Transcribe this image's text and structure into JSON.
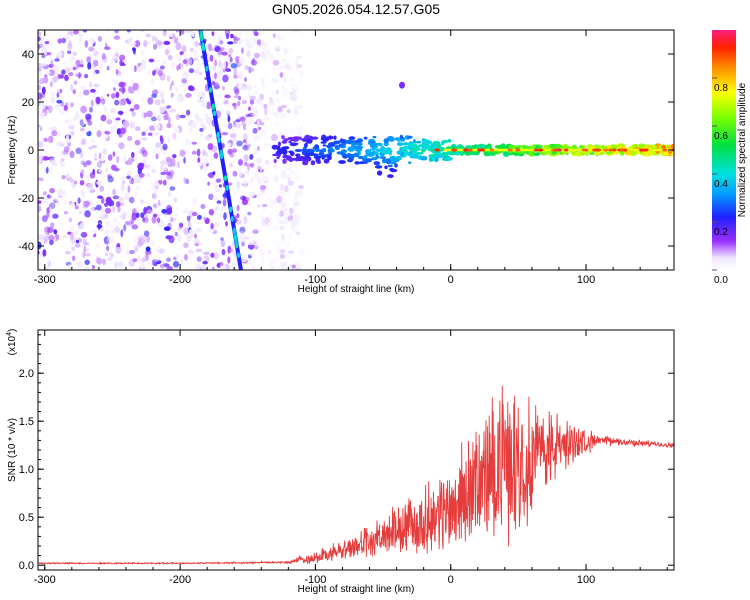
{
  "title": "GN05.2026.054.12.57.G05",
  "chart_data": [
    {
      "type": "heatmap",
      "name": "spectrogram",
      "xlabel": "Height of straight line (km)",
      "ylabel": "Frequency (Hz)",
      "xlim": [
        -305,
        165
      ],
      "ylim": [
        -50,
        50
      ],
      "xticks": [
        -300,
        -200,
        -100,
        0,
        100
      ],
      "yticks": [
        -40,
        -20,
        0,
        20,
        40
      ],
      "colorbar": {
        "label": "Normalized spectral amplitude",
        "range": [
          0,
          1
        ],
        "ticks": [
          0.0,
          0.2,
          0.4,
          0.6,
          0.8
        ],
        "tick_labels": [
          "0.0",
          "0.2",
          "0.4",
          "0.6",
          "0.8"
        ]
      },
      "features": {
        "noise_region_x": [
          -305,
          -120
        ],
        "diagonal_track": {
          "x_start": -185,
          "y_start": 50,
          "x_end": -155,
          "y_end": -50,
          "amplitude": 0.25
        },
        "central_band": {
          "x_range": [
            -130,
            165
          ],
          "freq": 0,
          "halfwidth_hz": 3,
          "amplitude_peak": 0.95
        },
        "isolated_spot": {
          "x": -36,
          "y": 27
        }
      }
    },
    {
      "type": "line",
      "name": "snr",
      "xlabel": "Height of straight line (km)",
      "ylabel": "SNR (10 * v/v)",
      "multiplier_label": "(x10",
      "multiplier_exp": "4",
      "multiplier_close": ")",
      "xlim": [
        -305,
        165
      ],
      "ylim": [
        -0.05,
        2.45
      ],
      "xticks": [
        -300,
        -200,
        -100,
        0,
        100
      ],
      "yticks": [
        0.0,
        0.5,
        1.0,
        1.5,
        2.0
      ],
      "ytick_labels": [
        "0.0",
        "0.5",
        "1.0",
        "1.5",
        "2.0"
      ],
      "color": "#e63c3c",
      "envelope": {
        "x": [
          -305,
          -200,
          -120,
          -110,
          -100,
          -80,
          -60,
          -40,
          -20,
          0,
          20,
          35,
          50,
          70,
          90,
          110,
          130,
          165
        ],
        "baseline": [
          0.02,
          0.02,
          0.03,
          0.06,
          0.08,
          0.15,
          0.25,
          0.35,
          0.45,
          0.6,
          0.85,
          1.05,
          1.1,
          1.2,
          1.28,
          1.3,
          1.28,
          1.25
        ],
        "amplitude": [
          0.0,
          0.0,
          0.01,
          0.05,
          0.08,
          0.12,
          0.2,
          0.3,
          0.4,
          0.55,
          0.75,
          0.95,
          0.9,
          0.55,
          0.25,
          0.06,
          0.04,
          0.03
        ]
      }
    }
  ]
}
